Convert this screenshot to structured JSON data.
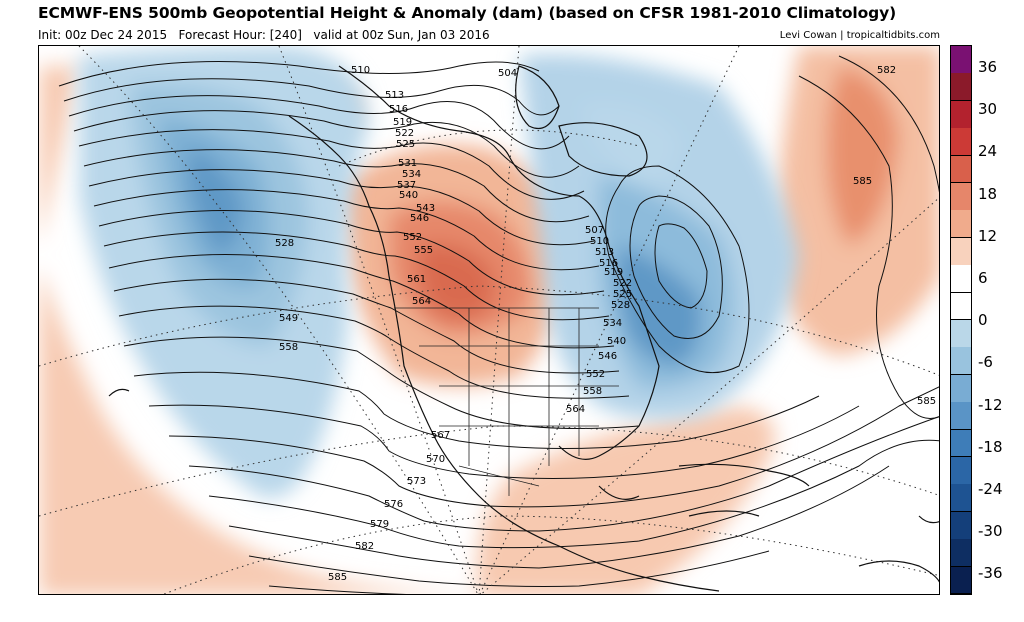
{
  "header": {
    "title": "ECMWF-ENS 500mb Geopotential Height & Anomaly (dam) (based on CFSR 1981-2010 Climatology)",
    "init": "Init: 00z Dec 24 2015",
    "forecast_hour": "Forecast Hour: [240]",
    "valid": "valid at 00z Sun, Jan 03 2016",
    "credit": "Levi Cowan | tropicaltidbits.com"
  },
  "colorbar": {
    "labels": [
      "36",
      "30",
      "24",
      "18",
      "12",
      "6",
      "0",
      "-6",
      "-12",
      "-18",
      "-24",
      "-30",
      "-36"
    ],
    "colors": [
      "#7a1172",
      "#8b1a2a",
      "#b3222e",
      "#cc3a36",
      "#d9604b",
      "#e6866a",
      "#f0ab8c",
      "#f8d2bd",
      "#ffffff",
      "#ffffff",
      "#bad7e8",
      "#99c3de",
      "#79acd3",
      "#5a94c6",
      "#3e7db8",
      "#2b66a6",
      "#1e5392",
      "#143f7a",
      "#0e2e62",
      "#0a2050"
    ]
  },
  "contour_labels": [
    "510",
    "504",
    "513",
    "516",
    "519",
    "522",
    "525",
    "528",
    "531",
    "534",
    "537",
    "540",
    "543",
    "546",
    "549",
    "552",
    "555",
    "558",
    "561",
    "564",
    "567",
    "570",
    "573",
    "576",
    "579",
    "582",
    "585",
    "582",
    "585",
    "585",
    "507",
    "510",
    "513",
    "516",
    "519",
    "522",
    "525",
    "528",
    "534",
    "540",
    "546",
    "552",
    "558",
    "564"
  ]
}
